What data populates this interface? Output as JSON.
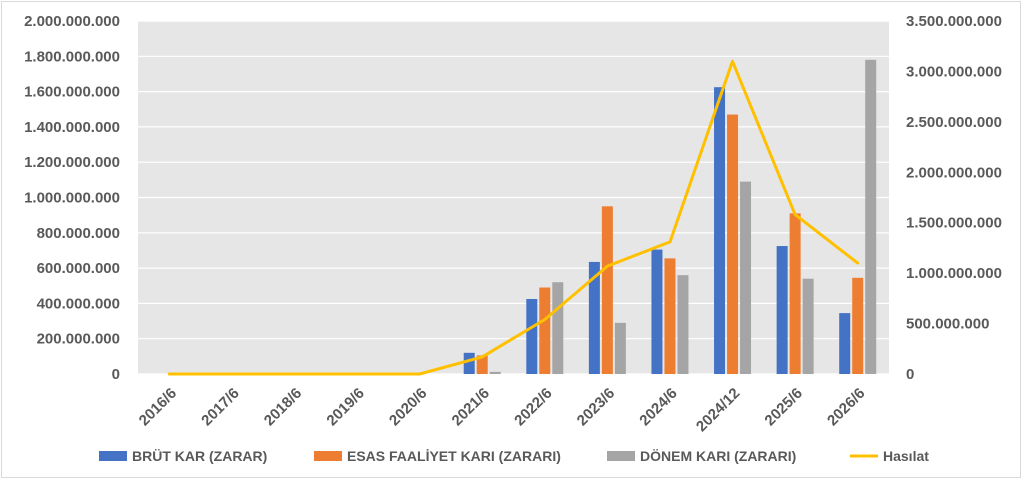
{
  "chart_data": {
    "type": "bar",
    "categories": [
      "2016/6",
      "2017/6",
      "2018/6",
      "2019/6",
      "2020/6",
      "2021/6",
      "2022/6",
      "2023/6",
      "2024/6",
      "2024/12",
      "2025/6",
      "2026/6"
    ],
    "series": [
      {
        "name": "BRÜT KAR (ZARAR)",
        "type": "bar",
        "axis": "left",
        "color": "#4472c4",
        "values": [
          0,
          0,
          0,
          0,
          0,
          120000000,
          425000000,
          635000000,
          705000000,
          1625000000,
          725000000,
          345000000
        ]
      },
      {
        "name": "ESAS FAALİYET KARI (ZARARI)",
        "type": "bar",
        "axis": "left",
        "color": "#ed7d31",
        "values": [
          0,
          0,
          0,
          0,
          0,
          105000000,
          490000000,
          950000000,
          655000000,
          1470000000,
          910000000,
          545000000
        ]
      },
      {
        "name": "DÖNEM KARI (ZARARI)",
        "type": "bar",
        "axis": "left",
        "color": "#a5a5a5",
        "values": [
          0,
          0,
          0,
          0,
          0,
          12000000,
          520000000,
          290000000,
          560000000,
          1090000000,
          540000000,
          1780000000
        ]
      },
      {
        "name": "Hasılat",
        "type": "line",
        "axis": "right",
        "color": "#ffc000",
        "values": [
          0,
          0,
          0,
          0,
          0,
          170000000,
          540000000,
          1070000000,
          1310000000,
          3100000000,
          1580000000,
          1100000000
        ]
      }
    ],
    "y_left": {
      "min": 0,
      "max": 2000000000,
      "ticks": [
        "0",
        "200.000.000",
        "400.000.000",
        "600.000.000",
        "800.000.000",
        "1.000.000.000",
        "1.200.000.000",
        "1.400.000.000",
        "1.600.000.000",
        "1.800.000.000",
        "2.000.000.000"
      ]
    },
    "y_right": {
      "min": 0,
      "max": 3500000000,
      "ticks": [
        "0",
        "500.000.000",
        "1.000.000.000",
        "1.500.000.000",
        "2.000.000.000",
        "2.500.000.000",
        "3.000.000.000",
        "3.500.000.000"
      ]
    },
    "grid": true,
    "legend_position": "bottom",
    "plot_background": "#e7e6e6"
  }
}
